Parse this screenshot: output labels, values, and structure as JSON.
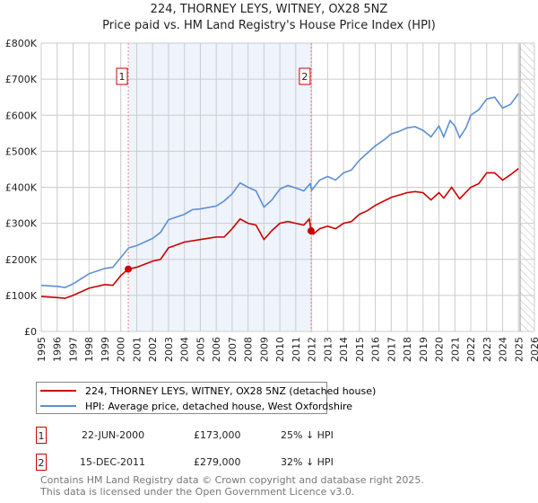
{
  "chart_data": {
    "type": "line",
    "title": "224, THORNEY LEYS, WITNEY, OX28 5NZ",
    "subtitle": "Price paid vs. HM Land Registry's House Price Index (HPI)",
    "xlim": [
      1995,
      2026
    ],
    "ylim": [
      0,
      800000
    ],
    "y_ticks": [
      {
        "v": 0,
        "label": "£0"
      },
      {
        "v": 100000,
        "label": "£100K"
      },
      {
        "v": 200000,
        "label": "£200K"
      },
      {
        "v": 300000,
        "label": "£300K"
      },
      {
        "v": 400000,
        "label": "£400K"
      },
      {
        "v": 500000,
        "label": "£500K"
      },
      {
        "v": 600000,
        "label": "£600K"
      },
      {
        "v": 700000,
        "label": "£700K"
      },
      {
        "v": 800000,
        "label": "£800K"
      }
    ],
    "x_ticks": [
      "1995",
      "1996",
      "1997",
      "1998",
      "1999",
      "2000",
      "2001",
      "2002",
      "2003",
      "2004",
      "2005",
      "2006",
      "2007",
      "2008",
      "2009",
      "2010",
      "2011",
      "2012",
      "2013",
      "2014",
      "2015",
      "2016",
      "2017",
      "2018",
      "2019",
      "2020",
      "2021",
      "2022",
      "2023",
      "2024",
      "2025",
      "2026"
    ],
    "grid": true,
    "shaded_period": [
      2000.47,
      2011.96
    ],
    "forecast_hatch_from": 2025.1,
    "series": [
      {
        "name": "224, THORNEY LEYS, WITNEY, OX28 5NZ (detached house)",
        "color": "#cc0000",
        "x": [
          1995,
          1996,
          1996.5,
          1997,
          1998,
          1999,
          1999.5,
          2000,
          2000.47,
          2001,
          2002,
          2002.5,
          2003,
          2004,
          2005,
          2006,
          2006.5,
          2007,
          2007.5,
          2008,
          2008.5,
          2009,
          2009.5,
          2010,
          2010.5,
          2011,
          2011.5,
          2011.85,
          2011.96,
          2012.1,
          2012.5,
          2013,
          2013.5,
          2014,
          2014.5,
          2015,
          2015.5,
          2016,
          2017,
          2018,
          2018.5,
          2019,
          2019.5,
          2020,
          2020.3,
          2020.8,
          2021.3,
          2022,
          2022.5,
          2023,
          2023.5,
          2024,
          2024.5,
          2025
        ],
        "y": [
          97000,
          94000,
          92000,
          100000,
          120000,
          130000,
          128000,
          155000,
          173000,
          178000,
          195000,
          200000,
          232000,
          248000,
          255000,
          262000,
          262000,
          285000,
          312000,
          300000,
          295000,
          255000,
          280000,
          300000,
          305000,
          300000,
          295000,
          312000,
          279000,
          270000,
          285000,
          292000,
          285000,
          300000,
          305000,
          325000,
          335000,
          350000,
          372000,
          385000,
          388000,
          385000,
          365000,
          385000,
          370000,
          400000,
          368000,
          400000,
          410000,
          440000,
          440000,
          420000,
          435000,
          452000
        ]
      },
      {
        "name": "HPI: Average price, detached house, West Oxfordshire",
        "color": "#5b8fd4",
        "x": [
          1995,
          1996,
          1996.5,
          1997,
          1998,
          1999,
          1999.5,
          2000,
          2000.5,
          2001,
          2002,
          2002.5,
          2003,
          2004,
          2004.5,
          2005,
          2006,
          2006.5,
          2007,
          2007.5,
          2008,
          2008.5,
          2009,
          2009.5,
          2010,
          2010.5,
          2011,
          2011.5,
          2011.9,
          2012,
          2012.5,
          2013,
          2013.5,
          2014,
          2014.5,
          2015,
          2015.5,
          2016,
          2016.5,
          2017,
          2017.5,
          2018,
          2018.5,
          2019,
          2019.5,
          2020,
          2020.3,
          2020.7,
          2021,
          2021.3,
          2021.7,
          2022,
          2022.5,
          2023,
          2023.5,
          2024,
          2024.5,
          2025
        ],
        "y": [
          128000,
          125000,
          122000,
          132000,
          160000,
          175000,
          178000,
          205000,
          232000,
          238000,
          258000,
          275000,
          310000,
          325000,
          338000,
          340000,
          348000,
          362000,
          382000,
          412000,
          400000,
          390000,
          345000,
          365000,
          395000,
          405000,
          398000,
          390000,
          410000,
          392000,
          420000,
          430000,
          420000,
          440000,
          448000,
          475000,
          495000,
          515000,
          530000,
          548000,
          555000,
          565000,
          568000,
          558000,
          540000,
          570000,
          540000,
          585000,
          570000,
          538000,
          565000,
          600000,
          615000,
          645000,
          650000,
          620000,
          630000,
          660000
        ]
      }
    ],
    "sales": [
      {
        "id": "1",
        "date": "22-JUN-2000",
        "x": 2000.47,
        "price": "£173,000",
        "price_value": 173000,
        "delta": "25% ↓ HPI"
      },
      {
        "id": "2",
        "date": "15-DEC-2011",
        "x": 2011.96,
        "price": "£279,000",
        "price_value": 279000,
        "delta": "32% ↓ HPI"
      }
    ]
  },
  "footer": {
    "line1": "Contains HM Land Registry data © Crown copyright and database right 2025.",
    "line2": "This data is licensed under the Open Government Licence v3.0."
  }
}
